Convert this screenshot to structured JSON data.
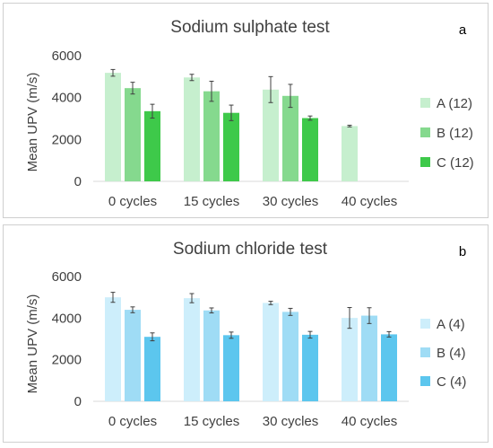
{
  "chart_data": [
    {
      "type": "bar",
      "title": "Sodium sulphate test",
      "panel_letter": "a",
      "ylabel": "Mean UPV (m/s)",
      "xlabel": "",
      "ylim": [
        0,
        6000
      ],
      "yticks": [
        "0",
        "2000",
        "4000",
        "6000"
      ],
      "grid": false,
      "legend_position": "right",
      "categories": [
        "0 cycles",
        "15 cycles",
        "30 cycles",
        "40 cycles"
      ],
      "series": [
        {
          "name": "A (12)",
          "color": "#c6efce",
          "values": [
            5180,
            4960,
            4380,
            2640
          ],
          "errors": [
            160,
            150,
            620,
            40
          ]
        },
        {
          "name": "B (12)",
          "color": "#85d98e",
          "values": [
            4450,
            4300,
            4080,
            null
          ],
          "errors": [
            280,
            480,
            550,
            null
          ]
        },
        {
          "name": "C (12)",
          "color": "#3ec94a",
          "values": [
            3350,
            3270,
            3020,
            null
          ],
          "errors": [
            330,
            370,
            100,
            null
          ]
        }
      ]
    },
    {
      "type": "bar",
      "title": "Sodium chloride test",
      "panel_letter": "b",
      "ylabel": "Mean UPV (m/s)",
      "xlabel": "",
      "ylim": [
        0,
        6000
      ],
      "yticks": [
        "0",
        "2000",
        "4000",
        "6000"
      ],
      "grid": false,
      "legend_position": "right",
      "categories": [
        "0 cycles",
        "15 cycles",
        "30 cycles",
        "40 cycles"
      ],
      "series": [
        {
          "name": "A (4)",
          "color": "#cdeefb",
          "values": [
            5000,
            4960,
            4730,
            4010
          ],
          "errors": [
            240,
            220,
            80,
            500
          ]
        },
        {
          "name": "B (4)",
          "color": "#9fdcf5",
          "values": [
            4400,
            4370,
            4300,
            4120
          ],
          "errors": [
            140,
            120,
            170,
            380
          ]
        },
        {
          "name": "C (4)",
          "color": "#5cc6ee",
          "values": [
            3100,
            3180,
            3200,
            3220
          ],
          "errors": [
            190,
            150,
            160,
            130
          ]
        }
      ]
    }
  ]
}
